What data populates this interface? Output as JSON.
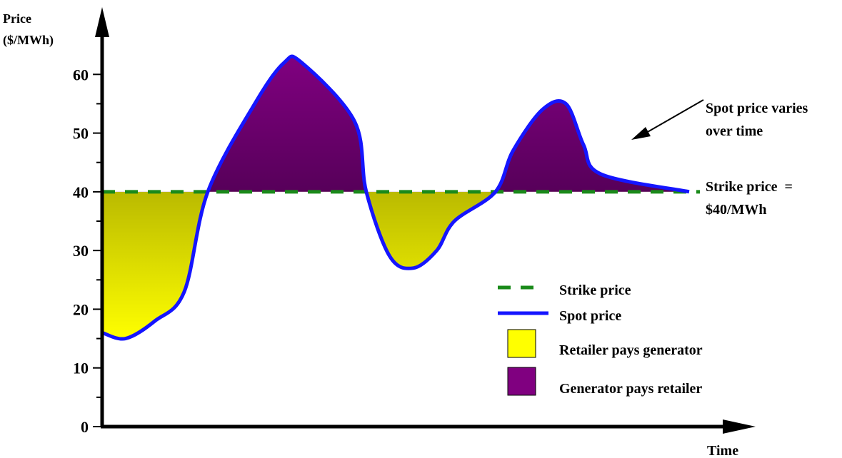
{
  "chart_data": {
    "type": "area",
    "ylabel_line1": "Price",
    "ylabel_line2": "($/MWh)",
    "xlabel": "Time",
    "ylim": [
      0,
      70
    ],
    "yticks": [
      0,
      10,
      20,
      30,
      40,
      50,
      60
    ],
    "ytick_labels": [
      "0",
      "10",
      "20",
      "30",
      "40",
      "50",
      "60"
    ],
    "grid": false,
    "strike_price": 40,
    "spot_price": {
      "x": [
        0,
        0.04,
        0.09,
        0.14,
        0.18,
        0.26,
        0.31,
        0.34,
        0.43,
        0.45,
        0.49,
        0.53,
        0.57,
        0.6,
        0.67,
        0.7,
        0.75,
        0.79,
        0.82,
        0.85,
        1.0
      ],
      "y": [
        16,
        15,
        18,
        23,
        40,
        55,
        62,
        62,
        52,
        40,
        29,
        27,
        30,
        35,
        40,
        47,
        54,
        55,
        48,
        43,
        40
      ]
    },
    "annotations": {
      "spot_varies": [
        "Spot price varies",
        "over time"
      ],
      "strike_label": [
        "Strike price  =",
        "$40/MWh"
      ]
    },
    "legend": {
      "placement": "bottom-right",
      "items": [
        {
          "label": "Strike price",
          "kind": "dashed-line",
          "color": "#1a8a1a"
        },
        {
          "label": "Spot price",
          "kind": "line",
          "color": "#1515ff"
        },
        {
          "label": "Retailer pays generator",
          "kind": "box",
          "color": "#ffff00"
        },
        {
          "label": "Generator pays retailer",
          "kind": "box",
          "color": "#800080"
        }
      ]
    },
    "colors": {
      "spot": "#1515ff",
      "strike": "#1a8a1a",
      "retailer_pays": "#ffff00",
      "retailer_pays_dark": "#7a7a00",
      "generator_pays": "#800080",
      "generator_pays_dark": "#2a0030"
    }
  }
}
